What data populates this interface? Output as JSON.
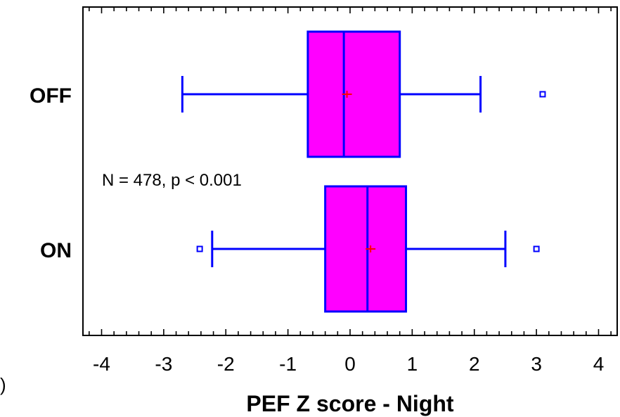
{
  "chart_data": {
    "type": "boxplot",
    "orientation": "horizontal",
    "xlabel": "PEF Z score - Night",
    "xlim": [
      -4.3,
      4.3
    ],
    "xticks": [
      -4,
      -3,
      -2,
      -1,
      0,
      1,
      2,
      3,
      4
    ],
    "xtick_labels": [
      "-4",
      "-3",
      "-2",
      "-1",
      "0",
      "1",
      "2",
      "3",
      "4"
    ],
    "annotation": "N = 478, p < 0.001",
    "edge_mark": ")",
    "colors": {
      "box_fill": "#ff00ff",
      "box_stroke": "#0000ff",
      "mean_marker": "#ff0000",
      "outlier": "#0000ff"
    },
    "categories": [
      "OFF",
      "ON"
    ],
    "series": [
      {
        "category": "OFF",
        "whisker_low": -2.7,
        "q1": -0.68,
        "median": -0.1,
        "q3": 0.8,
        "whisker_high": 2.1,
        "mean": -0.05,
        "outliers": [
          3.1
        ]
      },
      {
        "category": "ON",
        "whisker_low": -2.22,
        "q1": -0.4,
        "median": 0.28,
        "q3": 0.9,
        "whisker_high": 2.5,
        "mean": 0.33,
        "outliers": [
          -2.42,
          3.0
        ]
      }
    ]
  }
}
